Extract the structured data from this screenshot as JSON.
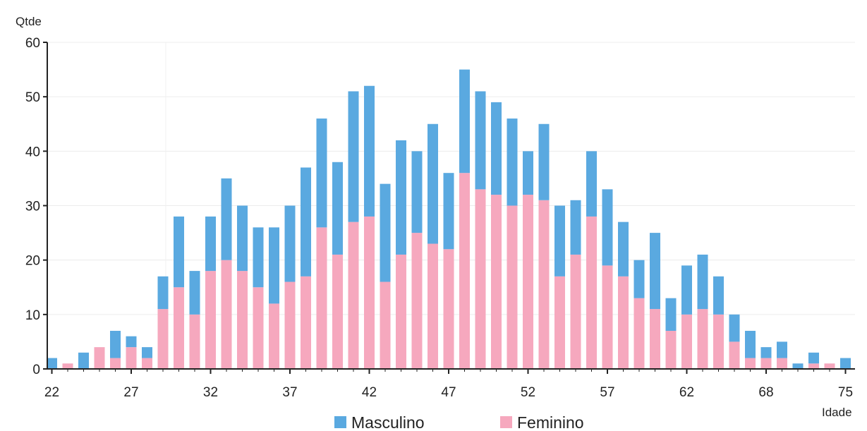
{
  "chart_data": {
    "type": "bar",
    "stacked": true,
    "ylabel": "Qtde",
    "xlabel": "Idade",
    "ylim": [
      0,
      60
    ],
    "yticks": [
      0,
      10,
      20,
      30,
      40,
      50,
      60
    ],
    "xtick_labels": [
      "22",
      "27",
      "32",
      "37",
      "42",
      "47",
      "52",
      "57",
      "62",
      "68",
      "75"
    ],
    "grid": "horizontal",
    "legend": "bottom",
    "colors": {
      "Feminino": "#F6A8BE",
      "Masculino": "#5AA9E0"
    },
    "series": [
      {
        "name": "Feminino",
        "values": [
          0,
          1,
          0,
          4,
          2,
          4,
          2,
          11,
          15,
          10,
          18,
          20,
          18,
          15,
          12,
          16,
          17,
          26,
          21,
          27,
          28,
          16,
          21,
          25,
          23,
          22,
          36,
          33,
          32,
          30,
          32,
          31,
          17,
          21,
          28,
          19,
          17,
          13,
          11,
          7,
          10,
          11,
          10,
          5,
          2,
          2,
          2,
          0,
          1,
          1,
          0
        ]
      },
      {
        "name": "Masculino",
        "values": [
          2,
          0,
          3,
          0,
          5,
          2,
          2,
          6,
          13,
          8,
          10,
          15,
          12,
          11,
          14,
          14,
          20,
          20,
          17,
          24,
          24,
          18,
          21,
          15,
          22,
          14,
          19,
          18,
          17,
          16,
          8,
          14,
          13,
          10,
          12,
          14,
          10,
          7,
          14,
          6,
          9,
          10,
          7,
          5,
          5,
          2,
          3,
          1,
          2,
          0,
          2
        ]
      }
    ]
  }
}
